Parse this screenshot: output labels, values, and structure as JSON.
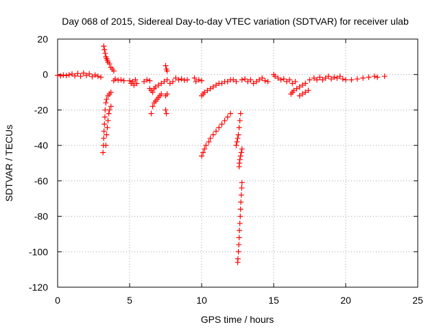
{
  "chart_data": {
    "type": "scatter",
    "title": "Day 068 of 2015, Sidereal Day-to-day VTEC variation (SDTVAR) for receiver ulab",
    "xlabel": "GPS time / hours",
    "ylabel": "SDTVAR / TECUs",
    "xlim": [
      0,
      25
    ],
    "ylim": [
      -120,
      20
    ],
    "xticks": [
      "0",
      "5",
      "10",
      "15",
      "20",
      "25"
    ],
    "yticks": [
      "20",
      "0",
      "-20",
      "-40",
      "-60",
      "-80",
      "-100",
      "-120"
    ],
    "grid": true,
    "marker": "+",
    "color": "#ff0000",
    "points": [
      [
        0.0,
        -0.5
      ],
      [
        0.2,
        -0.8
      ],
      [
        0.4,
        -0.3
      ],
      [
        0.6,
        -0.6
      ],
      [
        0.8,
        -0.2
      ],
      [
        1.0,
        0.3
      ],
      [
        1.2,
        -0.8
      ],
      [
        1.4,
        0.6
      ],
      [
        1.6,
        -1.0
      ],
      [
        1.8,
        0.8
      ],
      [
        2.0,
        -0.5
      ],
      [
        2.2,
        0.4
      ],
      [
        2.4,
        -1.2
      ],
      [
        2.6,
        -0.3
      ],
      [
        2.8,
        -1.0
      ],
      [
        3.0,
        -1.5
      ],
      [
        3.2,
        16
      ],
      [
        3.25,
        14
      ],
      [
        3.3,
        12
      ],
      [
        3.35,
        10
      ],
      [
        3.4,
        9
      ],
      [
        3.45,
        8
      ],
      [
        3.5,
        7
      ],
      [
        3.6,
        6
      ],
      [
        3.7,
        4
      ],
      [
        3.8,
        3
      ],
      [
        3.9,
        2
      ],
      [
        3.15,
        -44
      ],
      [
        3.18,
        -40
      ],
      [
        3.2,
        -36
      ],
      [
        3.22,
        -32
      ],
      [
        3.25,
        -28
      ],
      [
        3.28,
        -24
      ],
      [
        3.3,
        -20
      ],
      [
        3.35,
        -16
      ],
      [
        3.4,
        -14
      ],
      [
        3.5,
        -12
      ],
      [
        3.6,
        -11
      ],
      [
        3.7,
        -10
      ],
      [
        3.35,
        -40
      ],
      [
        3.4,
        -34
      ],
      [
        3.45,
        -30
      ],
      [
        3.5,
        -26
      ],
      [
        3.55,
        -22
      ],
      [
        3.6,
        -20
      ],
      [
        3.7,
        -18
      ],
      [
        3.9,
        -3.5
      ],
      [
        4.0,
        -2.5
      ],
      [
        4.2,
        -3.2
      ],
      [
        4.4,
        -3.0
      ],
      [
        4.6,
        -3.5
      ],
      [
        5.0,
        -3.5
      ],
      [
        5.1,
        -5
      ],
      [
        5.2,
        -4
      ],
      [
        5.3,
        -6
      ],
      [
        5.4,
        -3
      ],
      [
        5.5,
        -5
      ],
      [
        6.0,
        -4
      ],
      [
        6.2,
        -3
      ],
      [
        6.4,
        -3.5
      ],
      [
        6.5,
        -22
      ],
      [
        6.6,
        -18
      ],
      [
        6.7,
        -16
      ],
      [
        6.8,
        -15
      ],
      [
        6.9,
        -14
      ],
      [
        7.0,
        -13
      ],
      [
        7.1,
        -12
      ],
      [
        7.2,
        -11
      ],
      [
        6.4,
        -8
      ],
      [
        6.5,
        -9
      ],
      [
        6.6,
        -10
      ],
      [
        6.7,
        -8
      ],
      [
        6.8,
        -7
      ],
      [
        7.0,
        -6
      ],
      [
        7.2,
        -5
      ],
      [
        7.4,
        -4
      ],
      [
        7.5,
        -20
      ],
      [
        7.55,
        -22
      ],
      [
        7.5,
        -12
      ],
      [
        7.6,
        -11
      ],
      [
        7.5,
        5
      ],
      [
        7.55,
        3
      ],
      [
        7.6,
        2
      ],
      [
        7.6,
        -3
      ],
      [
        7.8,
        -5
      ],
      [
        8.0,
        -4
      ],
      [
        8.2,
        -2
      ],
      [
        8.4,
        -3
      ],
      [
        8.6,
        -2.5
      ],
      [
        8.8,
        -3.2
      ],
      [
        9.0,
        -3
      ],
      [
        9.5,
        -2
      ],
      [
        9.6,
        -4
      ],
      [
        9.8,
        -3
      ],
      [
        10.0,
        -3.5
      ],
      [
        10.0,
        -46
      ],
      [
        10.1,
        -44
      ],
      [
        10.2,
        -42
      ],
      [
        10.3,
        -40
      ],
      [
        10.5,
        -38
      ],
      [
        10.6,
        -36
      ],
      [
        10.8,
        -34
      ],
      [
        11.0,
        -32
      ],
      [
        11.2,
        -30
      ],
      [
        11.4,
        -28
      ],
      [
        11.6,
        -26
      ],
      [
        11.8,
        -24
      ],
      [
        12.0,
        -22
      ],
      [
        10.0,
        -12
      ],
      [
        10.1,
        -11
      ],
      [
        10.2,
        -10
      ],
      [
        10.4,
        -9
      ],
      [
        10.6,
        -8
      ],
      [
        10.8,
        -7
      ],
      [
        11.0,
        -6
      ],
      [
        11.2,
        -5
      ],
      [
        11.4,
        -5
      ],
      [
        11.6,
        -4
      ],
      [
        11.8,
        -4
      ],
      [
        12.0,
        -3
      ],
      [
        12.2,
        -3
      ],
      [
        12.4,
        -4
      ],
      [
        12.4,
        -40
      ],
      [
        12.45,
        -38
      ],
      [
        12.5,
        -36
      ],
      [
        12.55,
        -34
      ],
      [
        12.6,
        -30
      ],
      [
        12.65,
        -26
      ],
      [
        12.7,
        -22
      ],
      [
        12.5,
        -106
      ],
      [
        12.52,
        -104
      ],
      [
        12.55,
        -100
      ],
      [
        12.58,
        -96
      ],
      [
        12.6,
        -92
      ],
      [
        12.62,
        -88
      ],
      [
        12.65,
        -84
      ],
      [
        12.68,
        -80
      ],
      [
        12.7,
        -76
      ],
      [
        12.72,
        -72
      ],
      [
        12.75,
        -68
      ],
      [
        12.78,
        -64
      ],
      [
        12.8,
        -61
      ],
      [
        12.6,
        -52
      ],
      [
        12.62,
        -50
      ],
      [
        12.65,
        -48
      ],
      [
        12.7,
        -46
      ],
      [
        12.75,
        -44
      ],
      [
        12.8,
        -42
      ],
      [
        12.8,
        -3
      ],
      [
        13.0,
        -2.5
      ],
      [
        13.2,
        -4
      ],
      [
        13.4,
        -3
      ],
      [
        13.6,
        -5
      ],
      [
        13.8,
        -4
      ],
      [
        14.0,
        -3
      ],
      [
        14.2,
        -2
      ],
      [
        14.4,
        -3.5
      ],
      [
        14.6,
        -4
      ],
      [
        15.0,
        0
      ],
      [
        15.1,
        -1
      ],
      [
        15.3,
        -2
      ],
      [
        15.5,
        -3
      ],
      [
        15.7,
        -2.5
      ],
      [
        15.9,
        -4
      ],
      [
        16.1,
        -3
      ],
      [
        16.3,
        -5
      ],
      [
        16.5,
        -4
      ],
      [
        16.2,
        -11
      ],
      [
        16.3,
        -10
      ],
      [
        16.4,
        -9
      ],
      [
        16.6,
        -8
      ],
      [
        16.8,
        -7
      ],
      [
        17.0,
        -6
      ],
      [
        17.2,
        -5
      ],
      [
        16.8,
        -12
      ],
      [
        17.0,
        -11
      ],
      [
        17.2,
        -10
      ],
      [
        17.4,
        -9
      ],
      [
        17.5,
        -3
      ],
      [
        17.8,
        -2
      ],
      [
        18.0,
        -3
      ],
      [
        18.2,
        -1.5
      ],
      [
        18.4,
        -3
      ],
      [
        18.6,
        -2
      ],
      [
        18.8,
        -1
      ],
      [
        19.0,
        -2.5
      ],
      [
        19.2,
        -1.5
      ],
      [
        19.4,
        -2
      ],
      [
        19.6,
        -1
      ],
      [
        19.8,
        -2.5
      ],
      [
        20.0,
        -3
      ],
      [
        20.4,
        -3
      ],
      [
        20.8,
        -2.5
      ],
      [
        21.2,
        -2
      ],
      [
        21.6,
        -1.5
      ],
      [
        22.0,
        -1
      ],
      [
        22.2,
        -1.5
      ],
      [
        22.7,
        -1
      ]
    ]
  }
}
